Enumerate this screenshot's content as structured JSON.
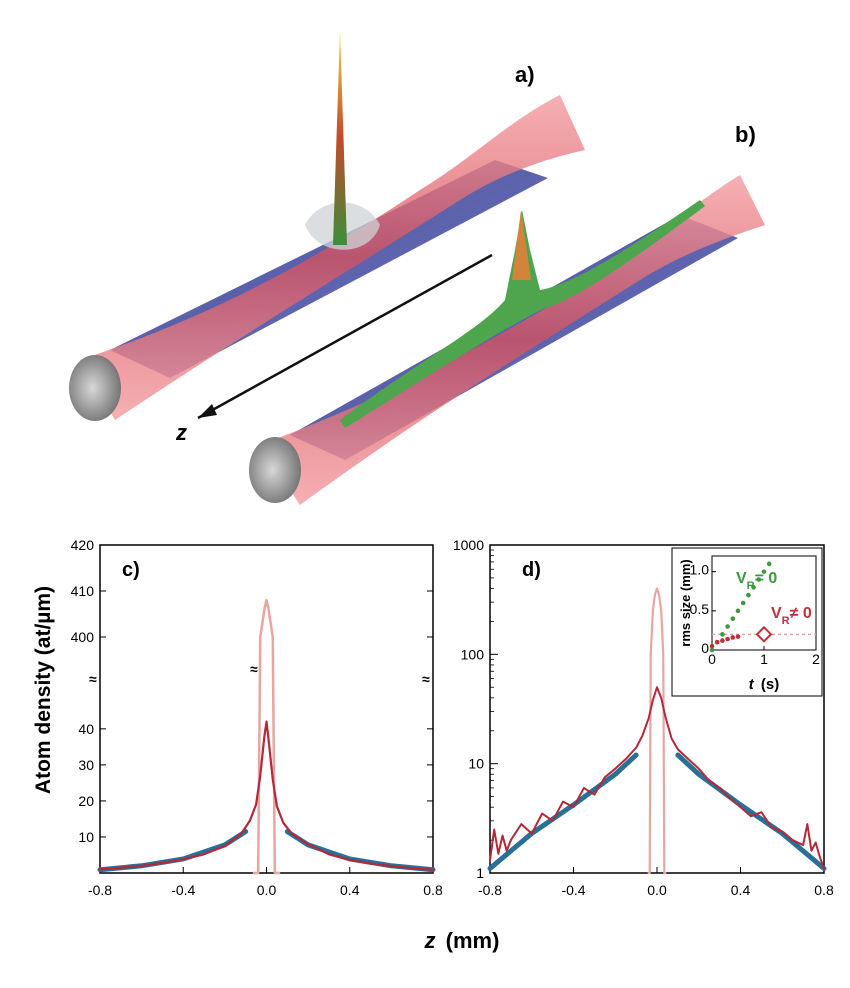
{
  "illustration": {
    "label_a": "a)",
    "label_b": "b)",
    "z_arrow_label": "z"
  },
  "shared": {
    "xlabel_var": "z",
    "xlabel_unit": "(mm)"
  },
  "chart_data": [
    {
      "panel": "c)",
      "type": "line",
      "ylabel": "Atom density (at/µm)",
      "xlim": [
        -0.8,
        0.8
      ],
      "x_ticks": [
        -0.8,
        -0.4,
        0.0,
        0.4,
        0.8
      ],
      "x_tick_labels": [
        "-0.8",
        "-0.4",
        "0.0",
        "0.4",
        "0.8"
      ],
      "y_axis": "broken",
      "y_lower_range": [
        0,
        48
      ],
      "y_lower_ticks": [
        10,
        20,
        30,
        40
      ],
      "y_upper_range": [
        395,
        420
      ],
      "y_upper_ticks": [
        400,
        410,
        420
      ],
      "axis_break_glyph": "≈",
      "series": [
        {
          "color": "#b3293a",
          "x": [
            -0.8,
            -0.7,
            -0.6,
            -0.5,
            -0.4,
            -0.3,
            -0.2,
            -0.12,
            -0.08,
            -0.05,
            -0.03,
            -0.01,
            0.0,
            0.01,
            0.03,
            0.05,
            0.08,
            0.12,
            0.2,
            0.3,
            0.4,
            0.5,
            0.6,
            0.7,
            0.8
          ],
          "y": [
            1.0,
            1.5,
            2.0,
            2.8,
            3.8,
            5.2,
            7.5,
            11.0,
            14.5,
            19.0,
            27.0,
            38.0,
            42.0,
            37.0,
            26.0,
            18.5,
            14.0,
            11.0,
            8.0,
            5.2,
            3.6,
            2.6,
            1.9,
            1.3,
            0.9
          ]
        },
        {
          "color": "#2a6f96",
          "x": [
            -0.8,
            -0.6,
            -0.4,
            -0.2,
            -0.1
          ],
          "y": [
            0.9,
            2.0,
            3.9,
            7.8,
            11.5
          ]
        },
        {
          "color": "#2a6f96",
          "x": [
            0.1,
            0.2,
            0.4,
            0.6,
            0.8
          ],
          "y": [
            11.5,
            7.8,
            3.9,
            2.0,
            0.9
          ]
        },
        {
          "color": "#e7a6a0",
          "x": [
            -0.06,
            -0.04,
            -0.03,
            -0.02,
            -0.01,
            0.0,
            0.01,
            0.02,
            0.03,
            0.04,
            0.06
          ],
          "y": [
            0,
            0,
            400,
            403,
            406,
            408,
            406,
            403,
            400,
            0,
            0
          ]
        }
      ]
    },
    {
      "panel": "d)",
      "type": "line",
      "y_scale": "log",
      "xlim": [
        -0.8,
        0.8
      ],
      "ylim": [
        1,
        1000
      ],
      "x_ticks": [
        -0.8,
        -0.4,
        0.0,
        0.4,
        0.8
      ],
      "x_tick_labels": [
        "-0.8",
        "-0.4",
        "0.0",
        "0.4",
        "0.8"
      ],
      "y_ticks": [
        1,
        10,
        100,
        1000
      ],
      "y_tick_labels": [
        "1",
        "10",
        "100",
        "1000"
      ],
      "series": [
        {
          "color": "#b3293a",
          "x": [
            -0.8,
            -0.78,
            -0.76,
            -0.74,
            -0.72,
            -0.7,
            -0.65,
            -0.6,
            -0.55,
            -0.5,
            -0.45,
            -0.4,
            -0.35,
            -0.3,
            -0.25,
            -0.2,
            -0.15,
            -0.1,
            -0.07,
            -0.04,
            -0.02,
            0.0,
            0.02,
            0.04,
            0.07,
            0.1,
            0.15,
            0.2,
            0.25,
            0.3,
            0.35,
            0.4,
            0.45,
            0.5,
            0.55,
            0.6,
            0.65,
            0.7,
            0.72,
            0.74,
            0.76,
            0.78,
            0.8
          ],
          "y": [
            1.3,
            2.5,
            1.5,
            2.2,
            1.6,
            2.0,
            2.8,
            2.3,
            3.5,
            3.0,
            4.5,
            4.0,
            6.0,
            5.2,
            7.5,
            9.0,
            11.0,
            14.0,
            18.0,
            26.0,
            38.0,
            50.0,
            40.0,
            27.0,
            17.0,
            13.5,
            11.0,
            9.0,
            7.0,
            6.0,
            4.8,
            4.0,
            3.3,
            3.6,
            2.6,
            2.4,
            2.0,
            1.8,
            2.8,
            1.6,
            1.9,
            1.4,
            1.1
          ]
        },
        {
          "color": "#2a6f96",
          "x": [
            -0.8,
            -0.6,
            -0.4,
            -0.2,
            -0.1
          ],
          "y": [
            1.1,
            2.3,
            4.2,
            8.0,
            12.0
          ]
        },
        {
          "color": "#2a6f96",
          "x": [
            0.1,
            0.2,
            0.4,
            0.6,
            0.8
          ],
          "y": [
            12.0,
            8.0,
            4.2,
            2.3,
            1.1
          ]
        },
        {
          "color": "#e7a6a0",
          "x": [
            -0.04,
            -0.035,
            -0.03,
            -0.02,
            -0.01,
            0.0,
            0.01,
            0.02,
            0.03,
            0.035,
            0.04
          ],
          "y": [
            1,
            1,
            100,
            250,
            350,
            400,
            350,
            250,
            100,
            1,
            1
          ]
        }
      ],
      "inset": {
        "type": "scatter",
        "ylabel": "rms size (mm)",
        "xlabel_var": "t",
        "xlabel_unit": "(s)",
        "xlim": [
          0,
          2
        ],
        "ylim": [
          0,
          1.2
        ],
        "x_ticks": [
          0,
          1,
          2
        ],
        "y_ticks": [
          0,
          0.5,
          1.0
        ],
        "y_tick_labels": [
          "0",
          "0.5",
          "1.0"
        ],
        "series": [
          {
            "label_main": "V",
            "label_sub": "R",
            "label_rest": "= 0",
            "color": "#3c9a3c",
            "x": [
              0.0,
              0.1,
              0.2,
              0.3,
              0.4,
              0.5,
              0.6,
              0.7,
              0.8,
              0.9,
              1.0,
              1.1
            ],
            "y": [
              0.0,
              0.1,
              0.2,
              0.3,
              0.4,
              0.5,
              0.6,
              0.7,
              0.8,
              0.9,
              1.0,
              1.1
            ]
          },
          {
            "label_main": "V",
            "label_sub": "R",
            "label_rest": "≠ 0",
            "color": "#c0303a",
            "x": [
              0.0,
              0.1,
              0.2,
              0.3,
              0.4,
              0.5
            ],
            "y": [
              0.05,
              0.1,
              0.12,
              0.14,
              0.16,
              0.17
            ]
          },
          {
            "color": "#c0303a",
            "marker": "diamond-open",
            "x": [
              1.0
            ],
            "y": [
              0.2
            ]
          }
        ]
      }
    }
  ]
}
